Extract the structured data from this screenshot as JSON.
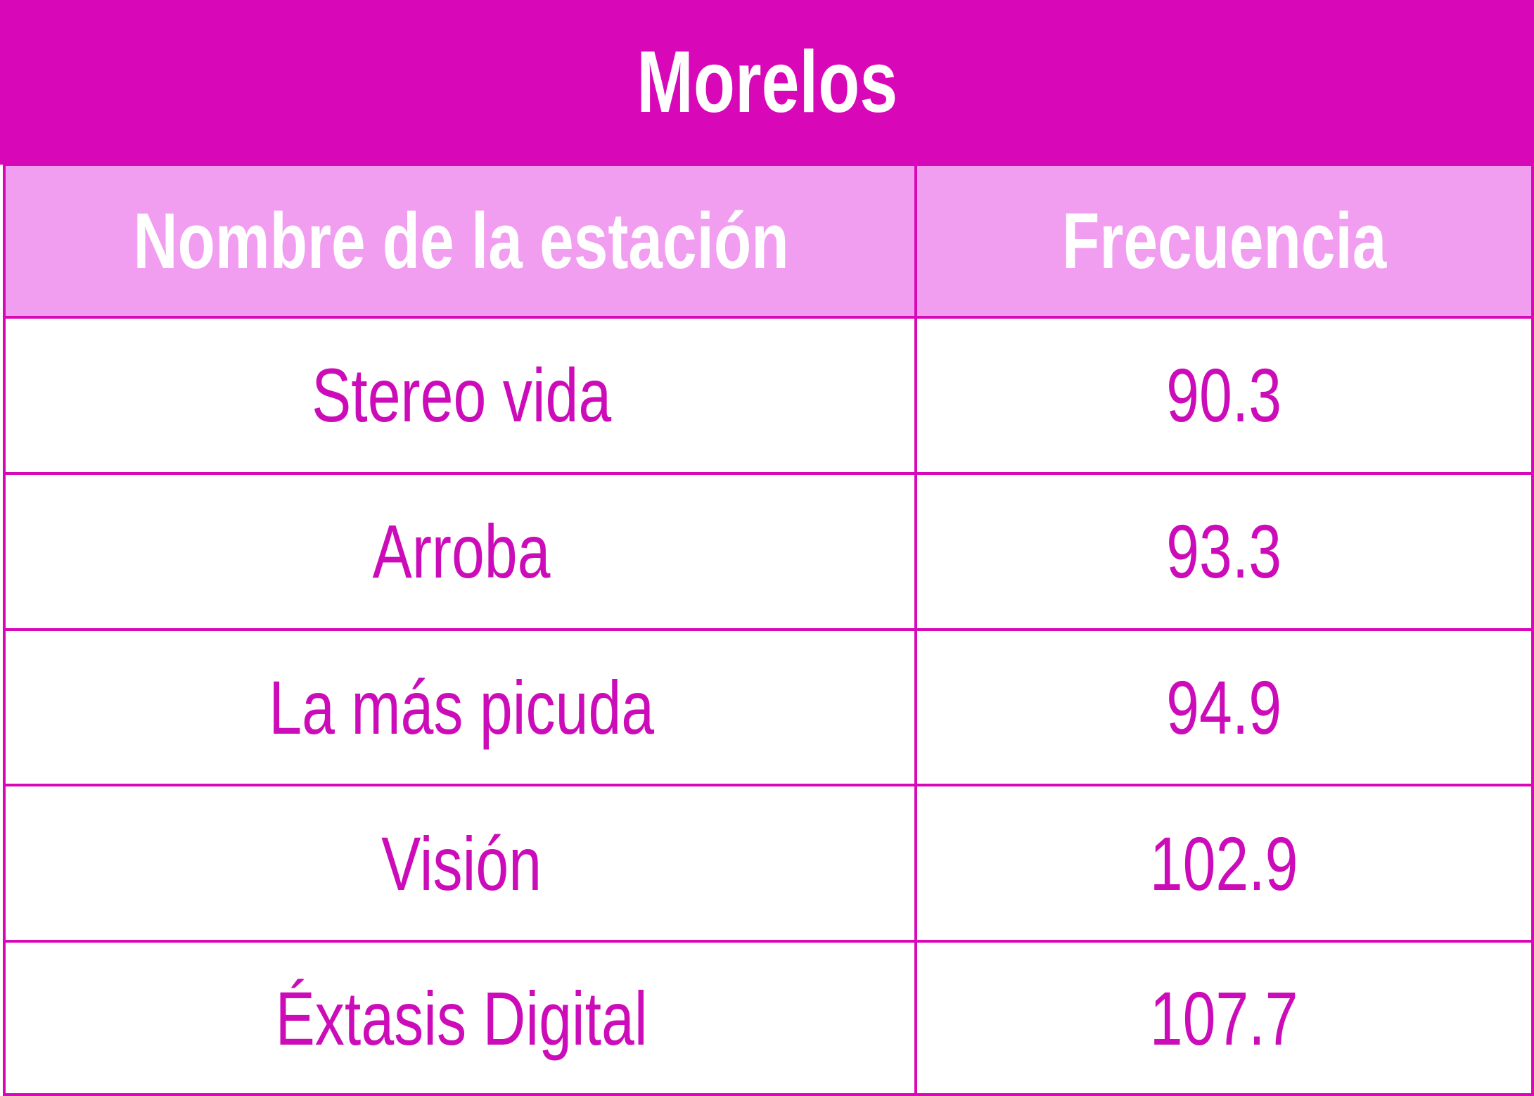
{
  "title": "Morelos",
  "table": {
    "header": [
      "Nombre de la estación",
      "Frecuencia"
    ],
    "rows": [
      [
        "Stereo vida",
        90.3
      ],
      [
        "Arroba",
        93.3
      ],
      [
        "La más picuda",
        94.9
      ],
      [
        "Visión",
        102.9
      ],
      [
        "Éxtasis Digital",
        107.7
      ]
    ]
  }
}
